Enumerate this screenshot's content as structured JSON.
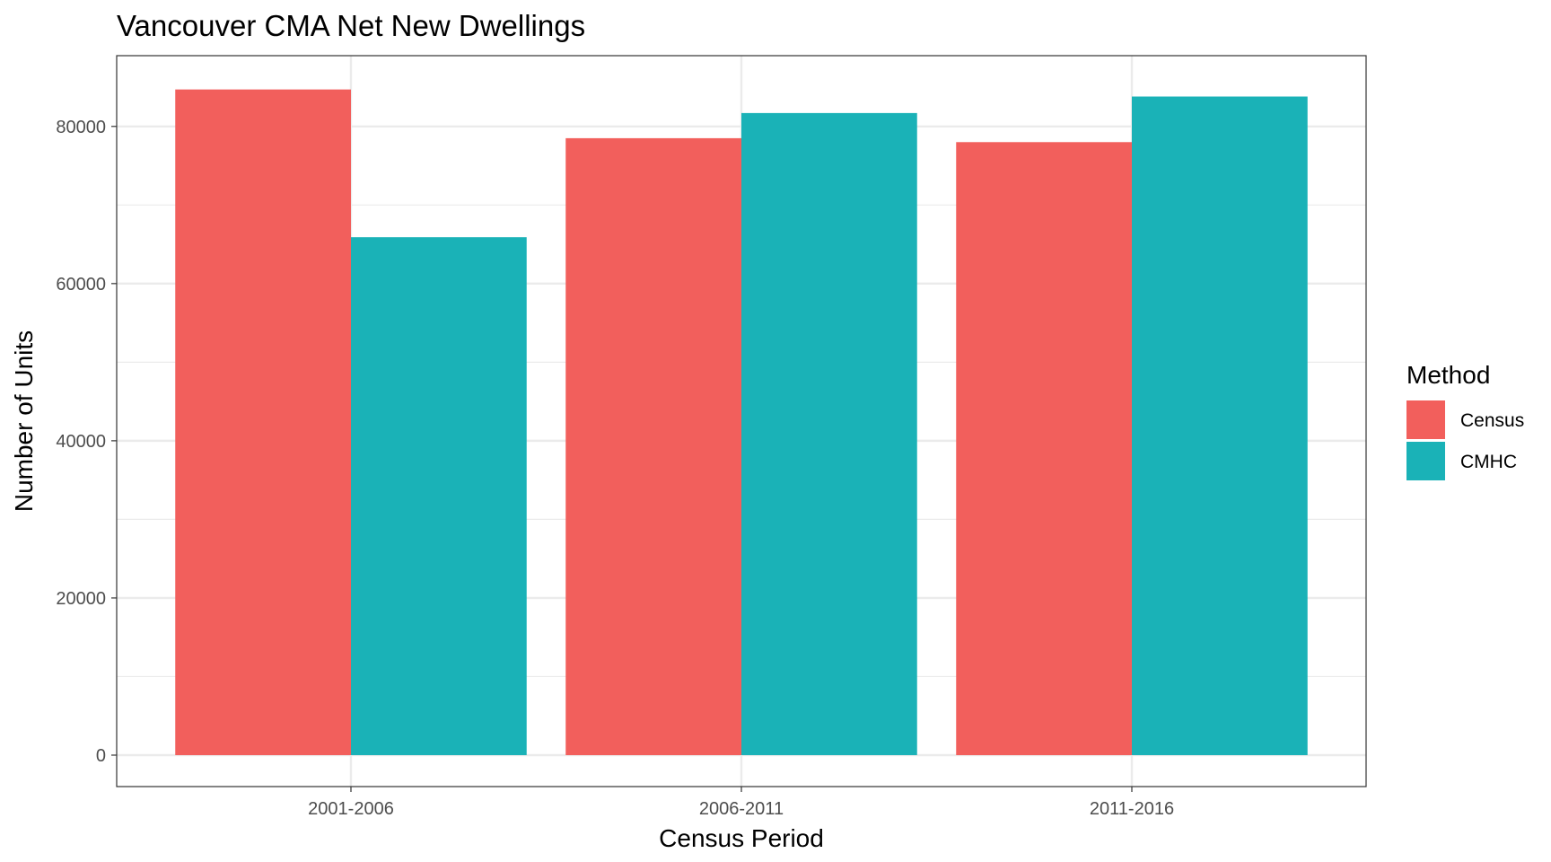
{
  "chart_data": {
    "type": "bar",
    "title": "Vancouver CMA Net New Dwellings",
    "xlabel": "Census Period",
    "ylabel": "Number of Units",
    "categories": [
      "2001-2006",
      "2006-2011",
      "2011-2016"
    ],
    "series": [
      {
        "name": "Census",
        "color": "#F25F5C",
        "values": [
          84700,
          78500,
          78000
        ]
      },
      {
        "name": "CMHC",
        "color": "#1AB2B7",
        "values": [
          65900,
          81700,
          83800
        ]
      }
    ],
    "ylim": [
      -4000,
      89000
    ],
    "yticks": [
      0,
      20000,
      40000,
      60000,
      80000
    ],
    "ytick_labels": [
      "0",
      "20000",
      "40000",
      "60000",
      "80000"
    ],
    "grid": true,
    "legend": {
      "title": "Method",
      "position": "right"
    },
    "panel_border_color": "#333333",
    "grid_color": "#EBEBEB"
  }
}
